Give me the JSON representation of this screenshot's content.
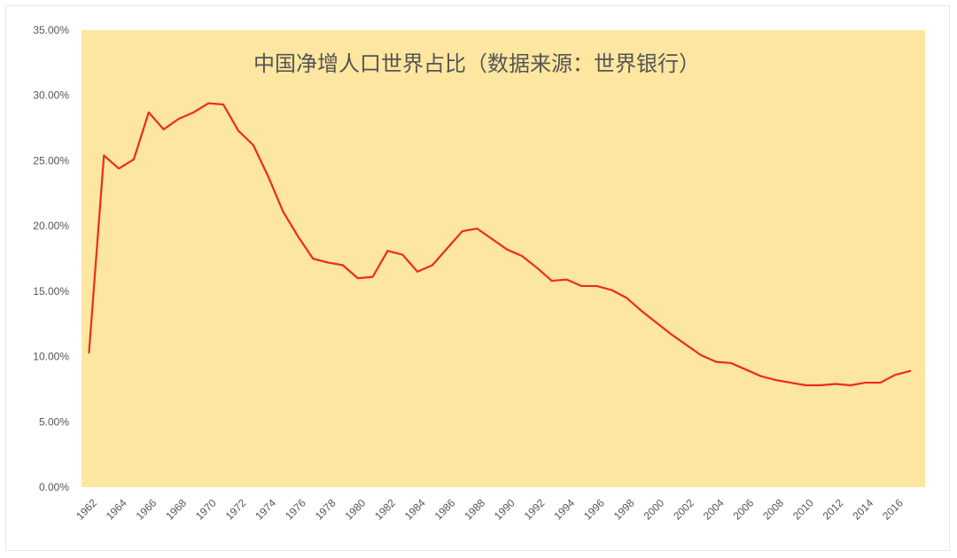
{
  "chart_data": {
    "type": "line",
    "title": "中国净增人口世界占比（数据来源：世界银行）",
    "xlabel": "",
    "ylabel": "",
    "ylim": [
      0,
      0.35
    ],
    "y_ticks": [
      "0.00%",
      "5.00%",
      "10.00%",
      "15.00%",
      "20.00%",
      "25.00%",
      "30.00%",
      "35.00%"
    ],
    "x_ticks": [
      "1962",
      "1964",
      "1966",
      "1968",
      "1970",
      "1972",
      "1974",
      "1976",
      "1978",
      "1980",
      "1982",
      "1984",
      "1986",
      "1988",
      "1990",
      "1992",
      "1994",
      "1996",
      "1998",
      "2000",
      "2002",
      "2004",
      "2006",
      "2008",
      "2010",
      "2012",
      "2014",
      "2016"
    ],
    "plot_background": "#fce6a0",
    "line_color": "#ee2b1c",
    "grid": false,
    "legend": "none",
    "series": [
      {
        "x": [
          1962,
          1963,
          1964,
          1965,
          1966,
          1967,
          1968,
          1969,
          1970,
          1971,
          1972,
          1973,
          1974,
          1975,
          1976,
          1977,
          1978,
          1979,
          1980,
          1981,
          1982,
          1983,
          1984,
          1985,
          1986,
          1987,
          1988,
          1989,
          1990,
          1991,
          1992,
          1993,
          1994,
          1995,
          1996,
          1997,
          1998,
          1999,
          2000,
          2001,
          2002,
          2003,
          2004,
          2005,
          2006,
          2007,
          2008,
          2009,
          2010,
          2011,
          2012,
          2013,
          2014,
          2015,
          2016,
          2017
        ],
        "values": [
          0.103,
          0.254,
          0.244,
          0.251,
          0.287,
          0.274,
          0.282,
          0.287,
          0.294,
          0.293,
          0.273,
          0.262,
          0.238,
          0.211,
          0.192,
          0.175,
          0.172,
          0.17,
          0.16,
          0.161,
          0.181,
          0.178,
          0.165,
          0.17,
          0.183,
          0.196,
          0.198,
          0.19,
          0.182,
          0.177,
          0.168,
          0.158,
          0.159,
          0.154,
          0.154,
          0.151,
          0.145,
          0.135,
          0.126,
          0.117,
          0.109,
          0.101,
          0.096,
          0.095,
          0.09,
          0.085,
          0.082,
          0.08,
          0.078,
          0.078,
          0.079,
          0.078,
          0.08,
          0.08,
          0.086,
          0.089
        ]
      }
    ]
  }
}
